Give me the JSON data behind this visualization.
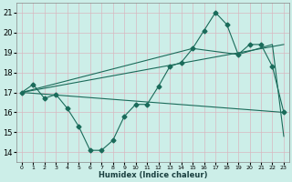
{
  "title": "",
  "xlabel": "Humidex (Indice chaleur)",
  "bg_color": "#cceee8",
  "grid_color": "#b0d8d0",
  "line_color": "#1a6b5a",
  "xlim": [
    -0.5,
    23.5
  ],
  "ylim": [
    13.5,
    21.5
  ],
  "yticks": [
    14,
    15,
    16,
    17,
    18,
    19,
    20,
    21
  ],
  "xticks": [
    0,
    1,
    2,
    3,
    4,
    5,
    6,
    7,
    8,
    9,
    10,
    11,
    12,
    13,
    14,
    15,
    16,
    17,
    18,
    19,
    20,
    21,
    22,
    23
  ],
  "line1_x": [
    0,
    1,
    2,
    3,
    4,
    5,
    6,
    7,
    8,
    9,
    10,
    11,
    12,
    13,
    14,
    15,
    16,
    17,
    18,
    19,
    20,
    21,
    22,
    23
  ],
  "line1_y": [
    17.0,
    17.4,
    16.7,
    16.9,
    16.2,
    15.3,
    14.1,
    14.1,
    14.6,
    15.8,
    16.4,
    16.4,
    17.3,
    18.3,
    18.5,
    19.2,
    20.1,
    21.0,
    20.4,
    18.9,
    19.4,
    19.4,
    18.3,
    16.0
  ],
  "line2_x": [
    0,
    23
  ],
  "line2_y": [
    17.0,
    19.4
  ],
  "line3_x": [
    0,
    23
  ],
  "line3_y": [
    17.0,
    16.0
  ],
  "line4_x": [
    0,
    15,
    19,
    22,
    23
  ],
  "line4_y": [
    17.0,
    19.2,
    18.9,
    19.4,
    14.8
  ]
}
